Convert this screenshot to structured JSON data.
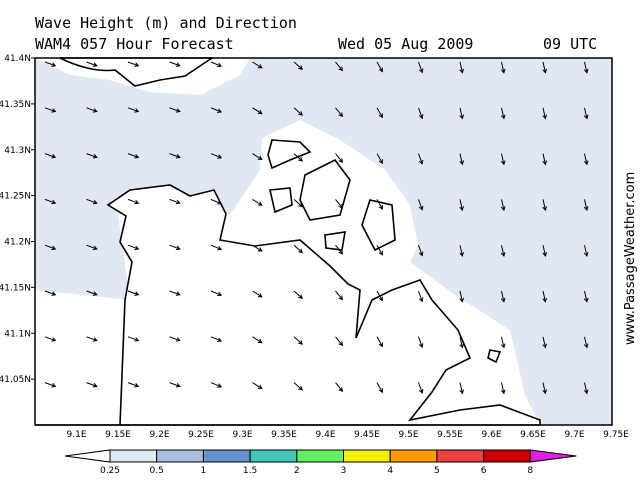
{
  "title": "Wave Height (m) and Direction",
  "subtitle": "WAM4 057 Hour Forecast",
  "date": "Wed 05 Aug 2009",
  "time": "09 UTC",
  "watermark": "www.PassageWeather.com",
  "map": {
    "lat_labels": [
      {
        "value": 41.4,
        "label": "41.4N"
      },
      {
        "value": 41.35,
        "label": "41.35N"
      },
      {
        "value": 41.3,
        "label": "41.3N"
      },
      {
        "value": 41.25,
        "label": "41.25N"
      },
      {
        "value": 41.2,
        "label": "41.2N"
      },
      {
        "value": 41.15,
        "label": "41.15N"
      },
      {
        "value": 41.1,
        "label": "41.1N"
      },
      {
        "value": 41.05,
        "label": "41.05N"
      }
    ],
    "lon_labels": [
      {
        "value": 9.1,
        "label": "9.1E"
      },
      {
        "value": 9.15,
        "label": "9.15E"
      },
      {
        "value": 9.2,
        "label": "9.2E"
      },
      {
        "value": 9.25,
        "label": "9.25E"
      },
      {
        "value": 9.3,
        "label": "9.3E"
      },
      {
        "value": 9.35,
        "label": "9.35E"
      },
      {
        "value": 9.4,
        "label": "9.4E"
      },
      {
        "value": 9.45,
        "label": "9.45E"
      },
      {
        "value": 9.5,
        "label": "9.5E"
      },
      {
        "value": 9.55,
        "label": "9.55E"
      },
      {
        "value": 9.6,
        "label": "9.6E"
      },
      {
        "value": 9.65,
        "label": "9.65E"
      },
      {
        "value": 9.7,
        "label": "9.7E"
      },
      {
        "value": 9.75,
        "label": "9.75E"
      }
    ]
  },
  "legend": {
    "levels": [
      0.25,
      0.5,
      1,
      1.5,
      2,
      3,
      4,
      5,
      6,
      8
    ],
    "colors": [
      "#ffffff",
      "#e0e8f4",
      "#a8bfe2",
      "#6890d0",
      "#40c8b8",
      "#60f060",
      "#f0f000",
      "#ff9a00",
      "#f04040",
      "#c80000",
      "#e020e0"
    ]
  }
}
